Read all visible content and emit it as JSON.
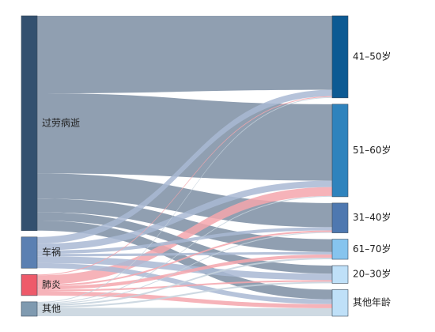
{
  "diagram": {
    "type": "sankey",
    "sources": [
      {
        "id": "s0",
        "label": "过劳病逝",
        "color": "#33506f"
      },
      {
        "id": "s1",
        "label": "车祸",
        "color": "#5b80b2"
      },
      {
        "id": "s2",
        "label": "肺炎",
        "color": "#ee5a6a"
      },
      {
        "id": "s3",
        "label": "其他",
        "color": "#7f9ab0"
      }
    ],
    "targets": [
      {
        "id": "t0",
        "label": "41–50岁",
        "color": "#0d5a93"
      },
      {
        "id": "t1",
        "label": "51–60岁",
        "color": "#2f83bd"
      },
      {
        "id": "t2",
        "label": "31–40岁",
        "color": "#4e78b0"
      },
      {
        "id": "t3",
        "label": "61–70岁",
        "color": "#86c4ee"
      },
      {
        "id": "t4",
        "label": "20–30岁",
        "color": "#bfe0f8"
      },
      {
        "id": "t5",
        "label": "其他年龄",
        "color": "#bfe0f8"
      }
    ],
    "links": [
      {
        "source": "s0",
        "target": "t0",
        "value": 92,
        "color": "#8a9aad"
      },
      {
        "source": "s0",
        "target": "t1",
        "value": 95,
        "color": "#8a9aad"
      },
      {
        "source": "s0",
        "target": "t2",
        "value": 30,
        "color": "#8a9aad"
      },
      {
        "source": "s0",
        "target": "t3",
        "value": 16,
        "color": "#8a9aad"
      },
      {
        "source": "s0",
        "target": "t4",
        "value": 10,
        "color": "#8a9aad"
      },
      {
        "source": "s0",
        "target": "t5",
        "value": 12,
        "color": "#8a9aad"
      },
      {
        "source": "s1",
        "target": "t0",
        "value": 8,
        "color": "#a9b9d4"
      },
      {
        "source": "s1",
        "target": "t1",
        "value": 8,
        "color": "#a9b9d4"
      },
      {
        "source": "s1",
        "target": "t2",
        "value": 4,
        "color": "#a9b9d4"
      },
      {
        "source": "s1",
        "target": "t3",
        "value": 3,
        "color": "#a9b9d4"
      },
      {
        "source": "s1",
        "target": "t4",
        "value": 8,
        "color": "#a9b9d4"
      },
      {
        "source": "s1",
        "target": "t5",
        "value": 6,
        "color": "#a9b9d4"
      },
      {
        "source": "s2",
        "target": "t0",
        "value": 1,
        "color": "#f4a6ad"
      },
      {
        "source": "s2",
        "target": "t1",
        "value": 11,
        "color": "#f4a6ad"
      },
      {
        "source": "s2",
        "target": "t2",
        "value": 2,
        "color": "#f4a6ad"
      },
      {
        "source": "s2",
        "target": "t3",
        "value": 4,
        "color": "#f4a6ad"
      },
      {
        "source": "s2",
        "target": "t4",
        "value": 2,
        "color": "#f4a6ad"
      },
      {
        "source": "s2",
        "target": "t5",
        "value": 5,
        "color": "#f4a6ad"
      },
      {
        "source": "s3",
        "target": "t0",
        "value": 1,
        "color": "#c6d2dd"
      },
      {
        "source": "s3",
        "target": "t1",
        "value": 1,
        "color": "#c6d2dd"
      },
      {
        "source": "s3",
        "target": "t2",
        "value": 1,
        "color": "#c6d2dd"
      },
      {
        "source": "s3",
        "target": "t3",
        "value": 2,
        "color": "#c6d2dd"
      },
      {
        "source": "s3",
        "target": "t4",
        "value": 2,
        "color": "#c6d2dd"
      },
      {
        "source": "s3",
        "target": "t5",
        "value": 10,
        "color": "#c6d2dd"
      }
    ]
  }
}
